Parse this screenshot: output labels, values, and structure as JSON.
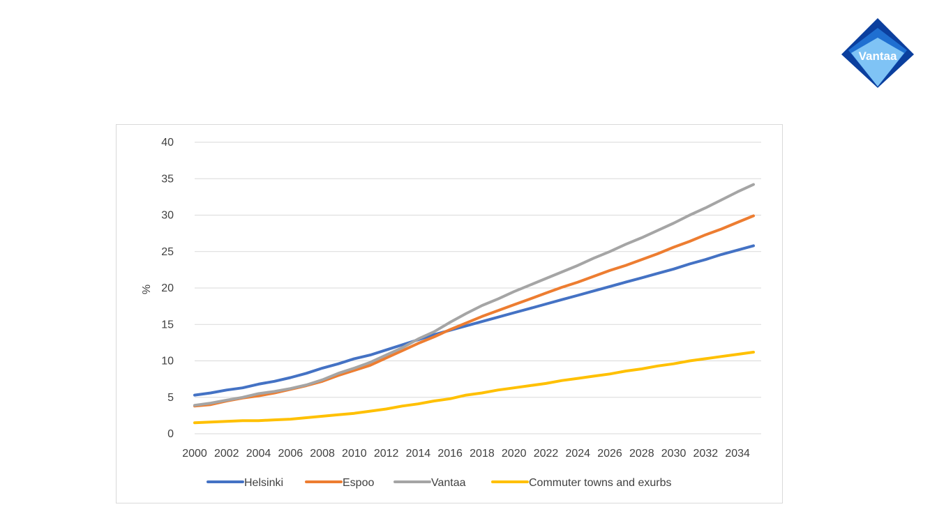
{
  "logo": {
    "text": "Vantaa",
    "colors": {
      "dark": "#0b3f9e",
      "mid": "#1f6fd1",
      "light": "#7fc3f5"
    }
  },
  "chart_data": {
    "type": "line",
    "title": "",
    "xlabel": "",
    "ylabel": "%",
    "ylim": [
      0,
      40
    ],
    "yticks": [
      0,
      5,
      10,
      15,
      20,
      25,
      30,
      35,
      40
    ],
    "xlim": [
      2000,
      2035
    ],
    "xtick_labels": [
      "2000",
      "2002",
      "2004",
      "2006",
      "2008",
      "2010",
      "2012",
      "2014",
      "2016",
      "2018",
      "2020",
      "2022",
      "2024",
      "2026",
      "2028",
      "2030",
      "2032",
      "2034"
    ],
    "grid": true,
    "legend_position": "bottom",
    "x": [
      2000,
      2001,
      2002,
      2003,
      2004,
      2005,
      2006,
      2007,
      2008,
      2009,
      2010,
      2011,
      2012,
      2013,
      2014,
      2015,
      2016,
      2017,
      2018,
      2019,
      2020,
      2021,
      2022,
      2023,
      2024,
      2025,
      2026,
      2027,
      2028,
      2029,
      2030,
      2031,
      2032,
      2033,
      2034,
      2035
    ],
    "series": [
      {
        "name": "Helsinki",
        "color": "#4472c4",
        "values": [
          5.3,
          5.6,
          6.0,
          6.3,
          6.8,
          7.2,
          7.7,
          8.3,
          9.0,
          9.6,
          10.3,
          10.8,
          11.5,
          12.2,
          12.9,
          13.6,
          14.2,
          14.8,
          15.4,
          16.0,
          16.6,
          17.2,
          17.8,
          18.4,
          19.0,
          19.6,
          20.2,
          20.8,
          21.4,
          22.0,
          22.6,
          23.3,
          23.9,
          24.6,
          25.2,
          25.8
        ]
      },
      {
        "name": "Espoo",
        "color": "#ed7d31",
        "values": [
          3.8,
          4.0,
          4.5,
          4.9,
          5.2,
          5.6,
          6.1,
          6.6,
          7.2,
          8.0,
          8.7,
          9.4,
          10.4,
          11.4,
          12.4,
          13.3,
          14.3,
          15.2,
          16.1,
          16.9,
          17.7,
          18.5,
          19.3,
          20.1,
          20.8,
          21.6,
          22.4,
          23.1,
          23.9,
          24.7,
          25.6,
          26.4,
          27.3,
          28.1,
          29.0,
          29.9
        ]
      },
      {
        "name": "Vantaa",
        "color": "#a5a5a5",
        "values": [
          3.9,
          4.2,
          4.6,
          5.0,
          5.5,
          5.8,
          6.2,
          6.7,
          7.4,
          8.3,
          9.0,
          9.8,
          10.8,
          11.8,
          13.0,
          14.0,
          15.3,
          16.5,
          17.6,
          18.5,
          19.5,
          20.4,
          21.3,
          22.2,
          23.1,
          24.1,
          25.0,
          26.0,
          26.9,
          27.9,
          28.9,
          30.0,
          31.0,
          32.1,
          33.2,
          34.2
        ]
      },
      {
        "name": "Commuter towns and exurbs",
        "color": "#ffc000",
        "values": [
          1.5,
          1.6,
          1.7,
          1.8,
          1.8,
          1.9,
          2.0,
          2.2,
          2.4,
          2.6,
          2.8,
          3.1,
          3.4,
          3.8,
          4.1,
          4.5,
          4.8,
          5.3,
          5.6,
          6.0,
          6.3,
          6.6,
          6.9,
          7.3,
          7.6,
          7.9,
          8.2,
          8.6,
          8.9,
          9.3,
          9.6,
          10.0,
          10.3,
          10.6,
          10.9,
          11.2
        ]
      }
    ]
  }
}
